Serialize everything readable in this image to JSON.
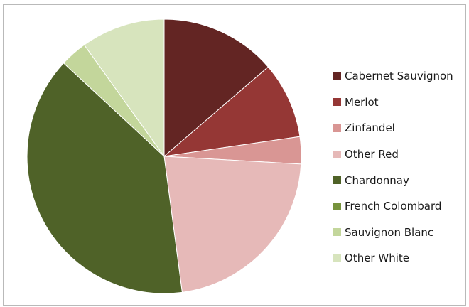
{
  "chart_data": {
    "type": "pie",
    "title": "",
    "legend_position": "right",
    "start_angle_deg": 0,
    "direction": "clockwise",
    "slices": [
      {
        "label": "Cabernet Sauvignon",
        "value": 13.7,
        "color": "#632523"
      },
      {
        "label": "Merlot",
        "value": 9.0,
        "color": "#953735"
      },
      {
        "label": "Zinfandel",
        "value": 3.2,
        "color": "#d99694"
      },
      {
        "label": "Other Red",
        "value": 22.0,
        "color": "#e6b9b8"
      },
      {
        "label": "Chardonnay",
        "value": 39.0,
        "color": "#4f6228"
      },
      {
        "label": "French Colombard",
        "value": 0.0,
        "color": "#77933c"
      },
      {
        "label": "Sauvignon Blanc",
        "value": 3.2,
        "color": "#c3d69b"
      },
      {
        "label": "Other White",
        "value": 9.9,
        "color": "#d7e4bd"
      }
    ]
  }
}
